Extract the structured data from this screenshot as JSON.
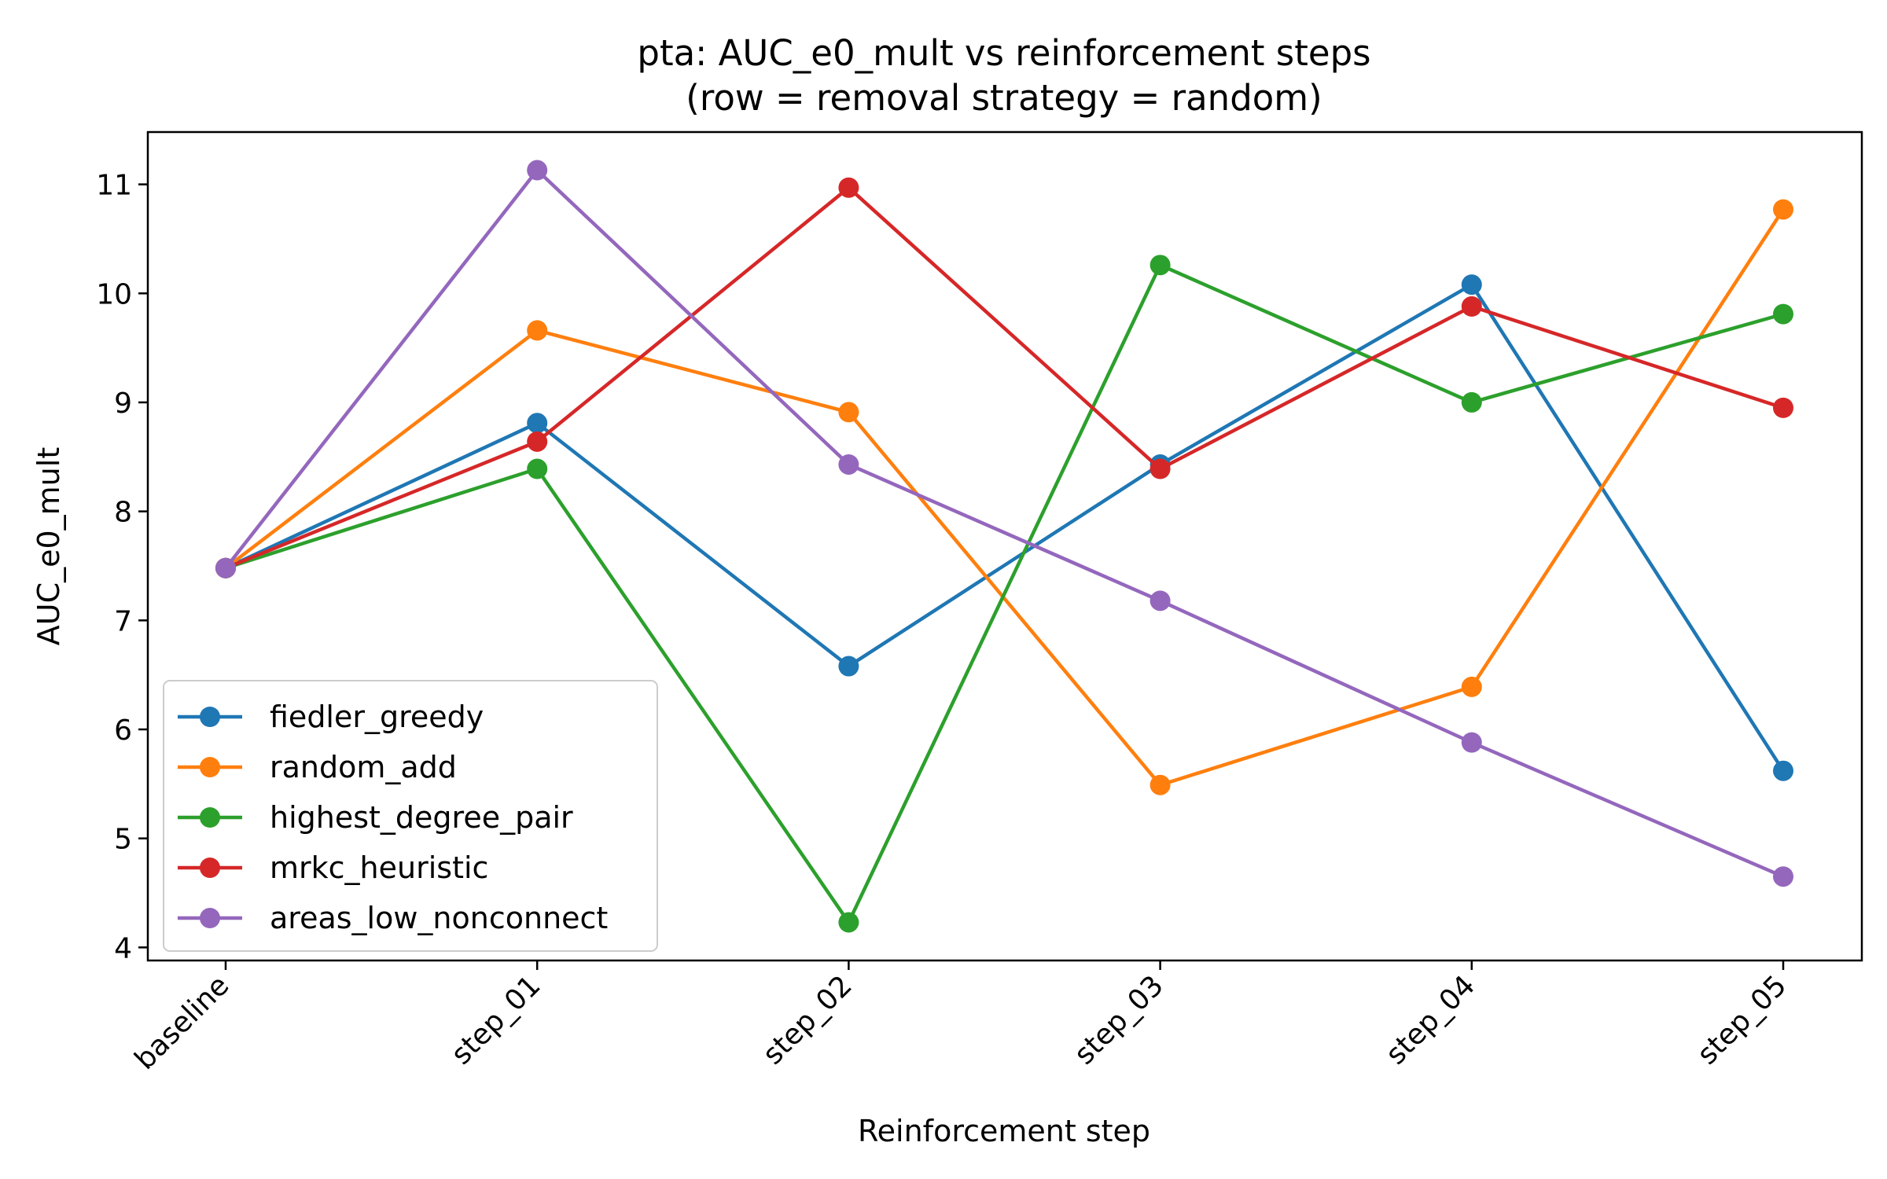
{
  "chart_data": {
    "type": "line",
    "title": "pta: AUC_e0_mult vs reinforcement steps",
    "subtitle": "(row = removal strategy = random)",
    "xlabel": "Reinforcement step",
    "ylabel": "AUC_e0_mult",
    "categories": [
      "baseline",
      "step_01",
      "step_02",
      "step_03",
      "step_04",
      "step_05"
    ],
    "ylim": [
      3.88,
      11.48
    ],
    "yticks": [
      4,
      5,
      6,
      7,
      8,
      9,
      10,
      11
    ],
    "grid": false,
    "legend_position": "lower-left",
    "series": [
      {
        "name": "fiedler_greedy",
        "color": "#1f77b4",
        "values": [
          7.48,
          8.81,
          6.58,
          8.43,
          10.08,
          5.62
        ]
      },
      {
        "name": "random_add",
        "color": "#ff7f0e",
        "values": [
          7.48,
          9.66,
          8.91,
          5.49,
          6.39,
          10.77
        ]
      },
      {
        "name": "highest_degree_pair",
        "color": "#2ca02c",
        "values": [
          7.48,
          8.39,
          4.23,
          10.26,
          9.0,
          9.81
        ]
      },
      {
        "name": "mrkc_heuristic",
        "color": "#d62728",
        "values": [
          7.48,
          8.64,
          10.97,
          8.39,
          9.88,
          8.95
        ]
      },
      {
        "name": "areas_low_nonconnect",
        "color": "#9467bd",
        "values": [
          7.48,
          11.13,
          8.43,
          7.18,
          5.88,
          4.65
        ]
      }
    ]
  }
}
